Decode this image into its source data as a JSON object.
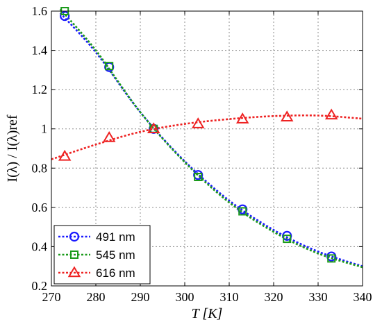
{
  "chart_data": {
    "type": "line",
    "xlabel": "T [K]",
    "ylabel": "I(λ) / I(λ)ref",
    "xlim": [
      270,
      340
    ],
    "ylim": [
      0.2,
      1.6
    ],
    "xticks": [
      270,
      280,
      290,
      300,
      310,
      320,
      330,
      340
    ],
    "yticks": [
      0.2,
      0.4,
      0.6,
      0.8,
      1,
      1.2,
      1.4,
      1.6
    ],
    "xtick_labels": [
      "270",
      "280",
      "290",
      "300",
      "310",
      "320",
      "330",
      "340"
    ],
    "ytick_labels": [
      "0.2",
      "0.4",
      "0.6",
      "0.8",
      "1",
      "1.2",
      "1.4",
      "1.6"
    ],
    "grid": true,
    "legend_position": "bottom-left",
    "series": [
      {
        "name": "491 nm",
        "color": "#1a1aff",
        "marker": "circle",
        "line_style": "dotted",
        "points": {
          "x": [
            273,
            283,
            293,
            303,
            313,
            323,
            333
          ],
          "y": [
            1.575,
            1.315,
            1.0,
            0.765,
            0.59,
            0.455,
            0.35
          ]
        },
        "fit": {
          "x": [
            272,
            280,
            290,
            300,
            310,
            320,
            330,
            340
          ],
          "y": [
            1.59,
            1.39,
            1.085,
            0.835,
            0.635,
            0.485,
            0.375,
            0.3
          ]
        }
      },
      {
        "name": "545 nm",
        "color": "#1a9a1a",
        "marker": "square",
        "line_style": "dotted",
        "points": {
          "x": [
            273,
            283,
            293,
            303,
            313,
            323,
            333
          ],
          "y": [
            1.6,
            1.32,
            1.0,
            0.755,
            0.58,
            0.44,
            0.34
          ]
        },
        "fit": {
          "x": [
            272,
            280,
            290,
            300,
            310,
            320,
            330,
            340
          ],
          "y": [
            1.61,
            1.4,
            1.085,
            0.83,
            0.625,
            0.475,
            0.365,
            0.295
          ]
        }
      },
      {
        "name": "616 nm",
        "color": "#ee2222",
        "marker": "triangle",
        "line_style": "dotted",
        "points": {
          "x": [
            273,
            283,
            293,
            303,
            313,
            323,
            333
          ],
          "y": [
            0.86,
            0.955,
            1.0,
            1.025,
            1.05,
            1.06,
            1.07
          ]
        },
        "fit": {
          "x": [
            270,
            280,
            290,
            300,
            310,
            320,
            330,
            340
          ],
          "y": [
            0.845,
            0.92,
            0.985,
            1.025,
            1.05,
            1.065,
            1.068,
            1.052
          ]
        }
      }
    ]
  }
}
